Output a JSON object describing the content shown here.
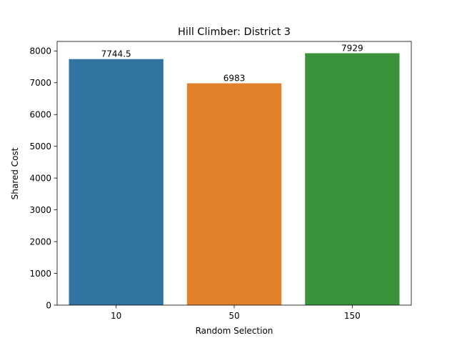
{
  "chart_data": {
    "type": "bar",
    "title": "Hill Climber: District 3",
    "xlabel": "Random Selection",
    "ylabel": "Shared Cost",
    "categories": [
      "10",
      "50",
      "150"
    ],
    "values": [
      7744.5,
      6983,
      7929
    ],
    "data_labels": [
      "7744.5",
      "6983",
      "7929"
    ],
    "colors": [
      "#3274a1",
      "#e1812c",
      "#3a923a"
    ],
    "ylim": [
      0,
      8300
    ],
    "yticks": [
      0,
      1000,
      2000,
      3000,
      4000,
      5000,
      6000,
      7000,
      8000
    ],
    "grid": false,
    "legend": "none"
  }
}
